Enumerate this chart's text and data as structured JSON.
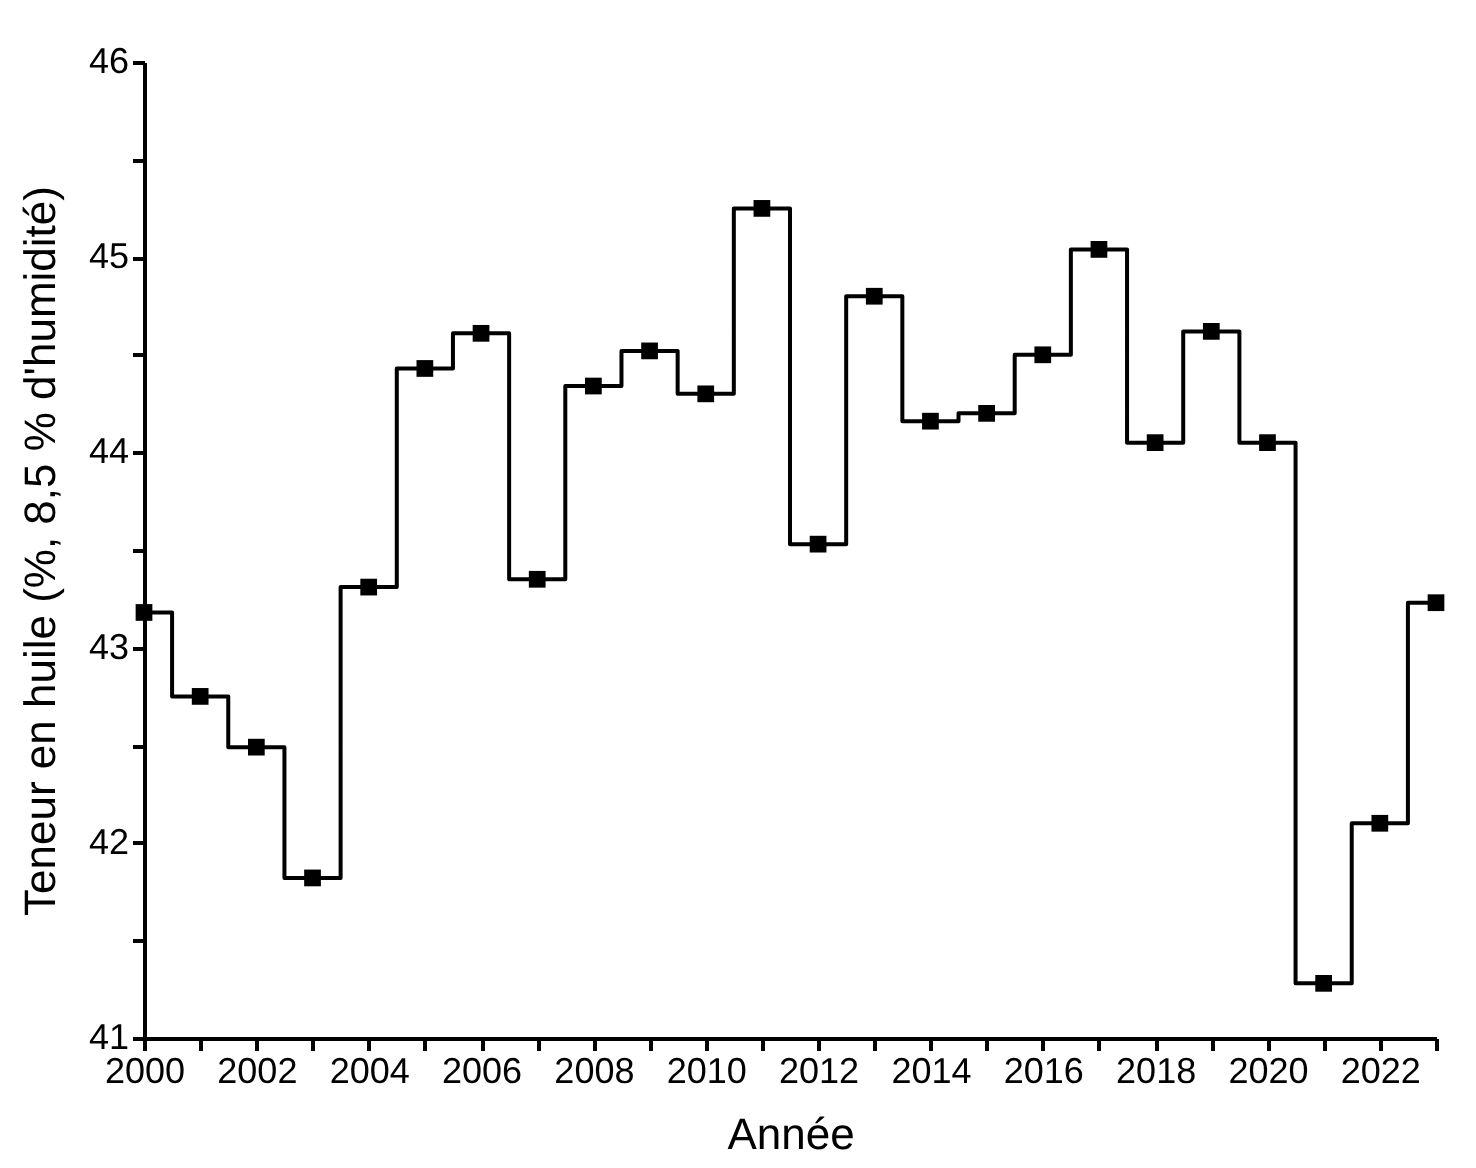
{
  "chart_data": {
    "type": "step",
    "xlabel": "Année",
    "ylabel": "Teneur en huile (%, 8,5 % d'humidité)",
    "x": [
      2000,
      2001,
      2002,
      2003,
      2004,
      2005,
      2006,
      2007,
      2008,
      2009,
      2010,
      2011,
      2012,
      2013,
      2014,
      2015,
      2016,
      2017,
      2018,
      2019,
      2020,
      2021,
      2022,
      2023
    ],
    "series": [
      {
        "color": "#000000",
        "values": [
          43.18,
          42.75,
          42.49,
          41.82,
          43.31,
          44.43,
          44.61,
          43.35,
          44.34,
          44.52,
          44.3,
          45.25,
          43.53,
          44.8,
          44.16,
          44.2,
          44.5,
          45.04,
          44.05,
          44.62,
          44.05,
          41.28,
          42.1,
          43.23
        ]
      }
    ],
    "xlim": [
      2000,
      2023
    ],
    "xticks": [
      2000,
      {
        "value": 2001,
        "label": null
      },
      2002,
      {
        "value": 2003,
        "label": null
      },
      2004,
      {
        "value": 2005,
        "label": null
      },
      2006,
      {
        "value": 2007,
        "label": null
      },
      2008,
      {
        "value": 2009,
        "label": null
      },
      2010,
      {
        "value": 2011,
        "label": null
      },
      2012,
      {
        "value": 2013,
        "label": null
      },
      2014,
      {
        "value": 2015,
        "label": null
      },
      2016,
      {
        "value": 2017,
        "label": null
      },
      2018,
      {
        "value": 2019,
        "label": null
      },
      2020,
      {
        "value": 2021,
        "label": null
      },
      2022,
      {
        "value": 2023,
        "label": null
      }
    ],
    "ylim": [
      41,
      46
    ],
    "yticks": [
      41,
      {
        "value": 41.5,
        "label": null
      },
      42,
      {
        "value": 42.5,
        "label": null
      },
      43,
      {
        "value": 43.5,
        "label": null
      },
      44,
      {
        "value": 44.5,
        "label": null
      },
      45,
      {
        "value": 45.5,
        "label": null
      },
      46
    ],
    "marker": "square",
    "line_style": "solid",
    "grid": false
  }
}
